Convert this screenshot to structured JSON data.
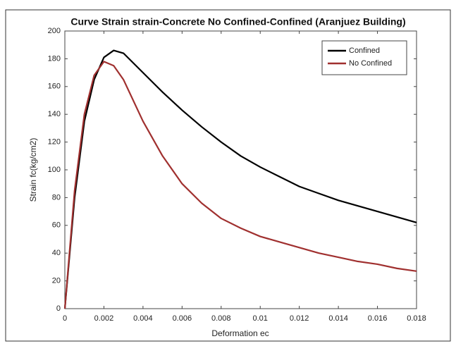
{
  "chart_data": {
    "type": "line",
    "title": "Curve Strain strain-Concrete No Confined-Confined (Aranjuez Building)",
    "x_label": "Deformation ec",
    "y_label": "Strain fc(kg/cm2)",
    "x": [
      0,
      0.0005,
      0.001,
      0.0015,
      0.002,
      0.0025,
      0.003,
      0.004,
      0.005,
      0.006,
      0.007,
      0.008,
      0.009,
      0.01,
      0.011,
      0.012,
      0.013,
      0.014,
      0.015,
      0.016,
      0.017,
      0.018
    ],
    "series": [
      {
        "name": "Confined",
        "color": "#000000",
        "values": [
          0,
          80,
          135,
          165,
          181,
          186,
          184,
          170,
          156,
          143,
          131,
          120,
          110,
          102,
          95,
          88,
          83,
          78,
          74,
          70,
          66,
          62
        ]
      },
      {
        "name": "No Confined",
        "color": "#a0302f",
        "values": [
          0,
          85,
          140,
          168,
          178,
          175,
          165,
          135,
          110,
          90,
          76,
          65,
          58,
          52,
          48,
          44,
          40,
          37,
          34,
          32,
          29,
          27
        ]
      }
    ],
    "xlim": [
      0,
      0.018
    ],
    "xticks": [
      0,
      0.002,
      0.004,
      0.006,
      0.008,
      0.01,
      0.012,
      0.014,
      0.016,
      0.018
    ],
    "ylim": [
      0,
      200
    ],
    "yticks": [
      0,
      20,
      40,
      60,
      80,
      100,
      120,
      140,
      160,
      180,
      200
    ],
    "grid": false,
    "legend": "upper right"
  }
}
